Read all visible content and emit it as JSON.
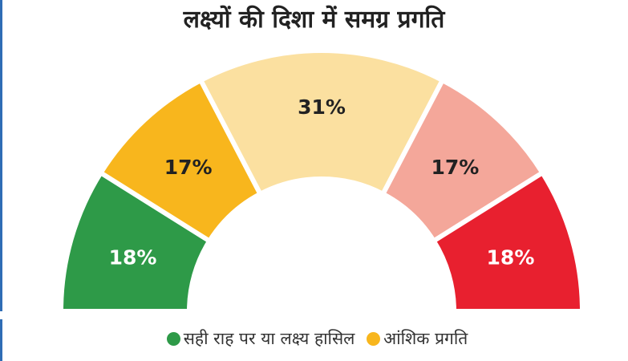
{
  "chart_data": {
    "type": "pie",
    "subtype": "half-donut",
    "title": "लक्ष्यों की दिशा में समग्र प्रगति",
    "values": [
      18,
      17,
      31,
      17,
      18
    ],
    "labels": [
      "18%",
      "17%",
      "31%",
      "17%",
      "18%"
    ],
    "colors": [
      "#2e9a48",
      "#f8b61d",
      "#fbe0a0",
      "#f4a79a",
      "#e8202f"
    ],
    "label_colors": [
      "#ffffff",
      "#222222",
      "#222222",
      "#222222",
      "#ffffff"
    ],
    "legend": [
      {
        "label": "सही राह पर या लक्ष्य हासिल",
        "color": "#2e9a48"
      },
      {
        "label": "आंशिक प्रगति",
        "color": "#f8b61d"
      }
    ]
  }
}
